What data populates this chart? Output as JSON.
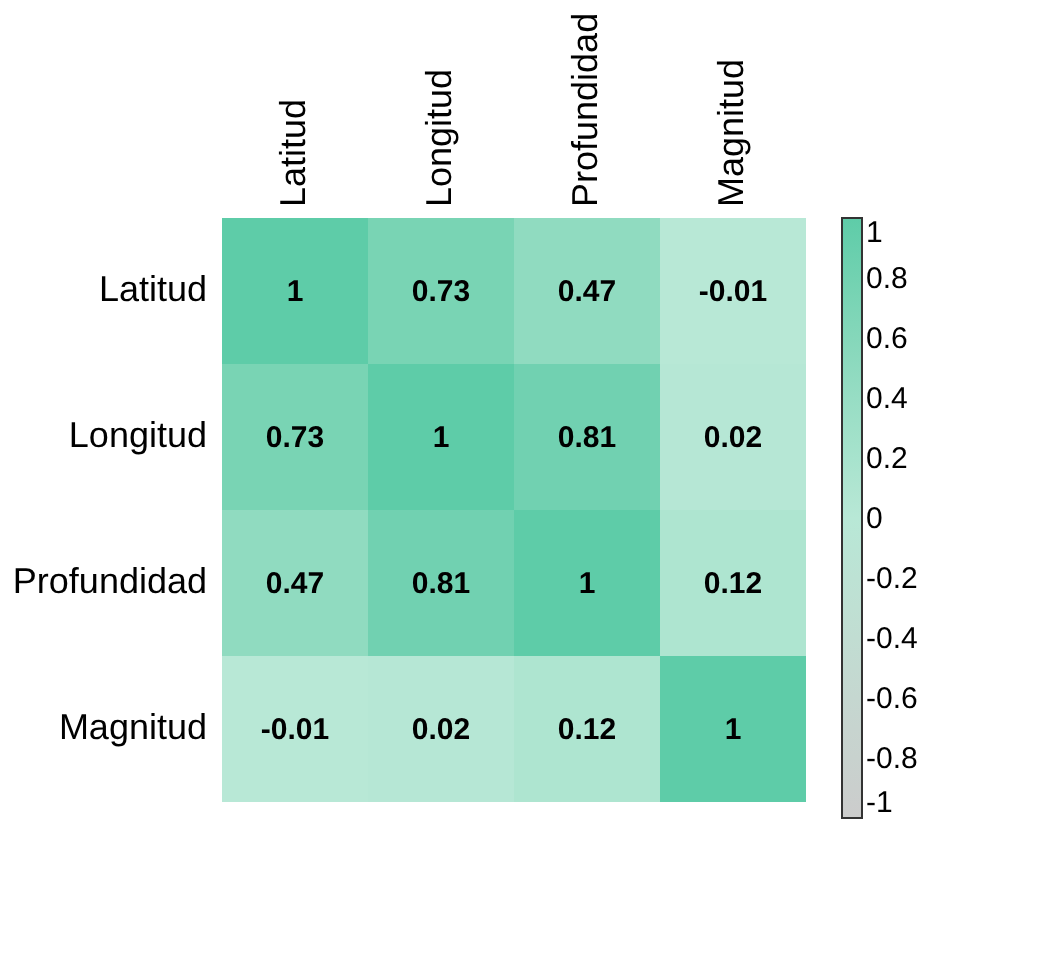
{
  "chart_data": {
    "type": "heatmap",
    "categories": [
      "Latitud",
      "Longitud",
      "Profundidad",
      "Magnitud"
    ],
    "y_categories": [
      "Latitud",
      "Longitud",
      "Profundidad",
      "Magnitud"
    ],
    "cells": [
      [
        1,
        0.73,
        0.47,
        -0.01
      ],
      [
        0.73,
        1,
        0.81,
        0.02
      ],
      [
        0.47,
        0.81,
        1,
        0.12
      ],
      [
        -0.01,
        0.02,
        0.12,
        1
      ]
    ],
    "clim": [
      -1,
      1
    ],
    "cticks": [
      1,
      0.8,
      0.6,
      0.4,
      0.2,
      0,
      -0.2,
      -0.4,
      -0.6,
      -0.8,
      -1
    ],
    "colors": [
      "#cccccc",
      "#b8e8d6",
      "#5ecca8"
    ],
    "data_labels": true,
    "grid": false
  }
}
